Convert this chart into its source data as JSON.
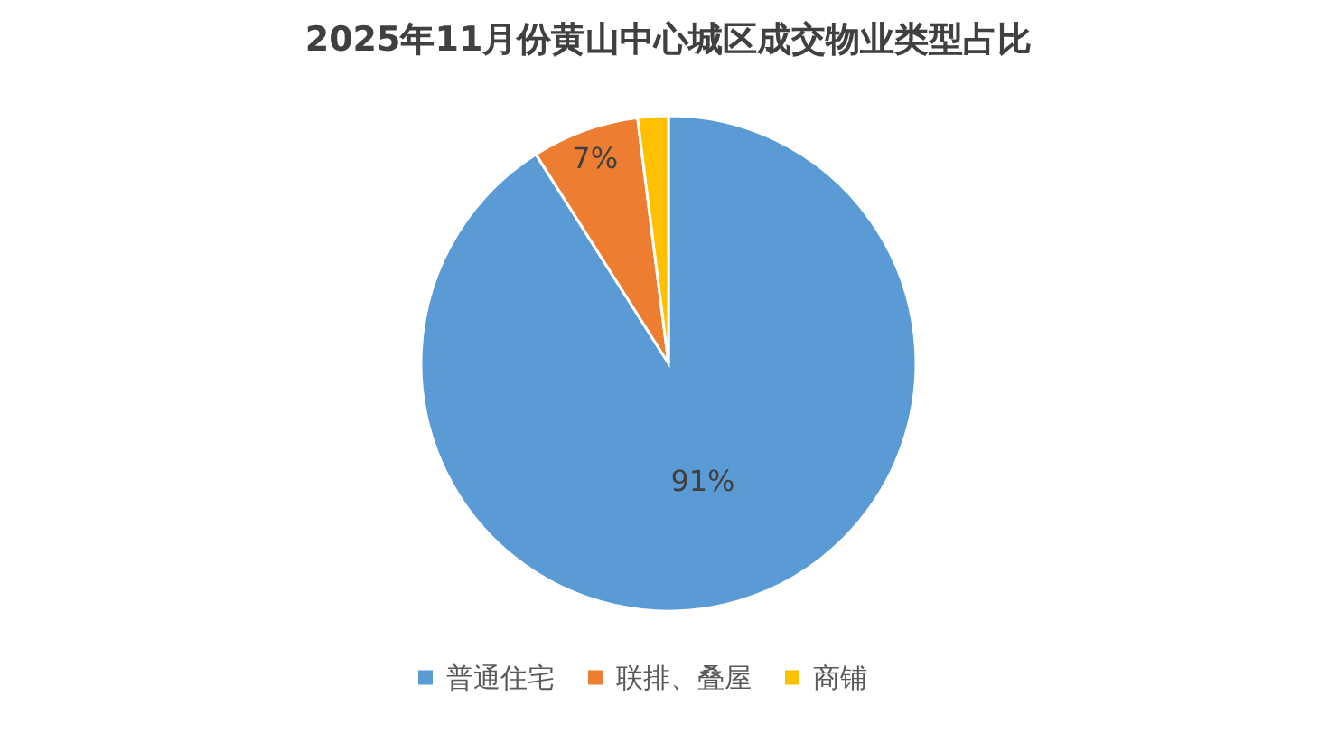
{
  "chart_data": {
    "type": "pie",
    "title": "2025年11月份黄山中心城区成交物业类型占比",
    "categories": [
      "普通住宅",
      "联排、叠屋",
      "商铺"
    ],
    "values": [
      91,
      7,
      2
    ],
    "colors": [
      "#5b9bd5",
      "#ed7d31",
      "#ffc000"
    ],
    "value_labels": [
      "91%",
      "7%",
      null
    ],
    "legend": "bottom"
  }
}
